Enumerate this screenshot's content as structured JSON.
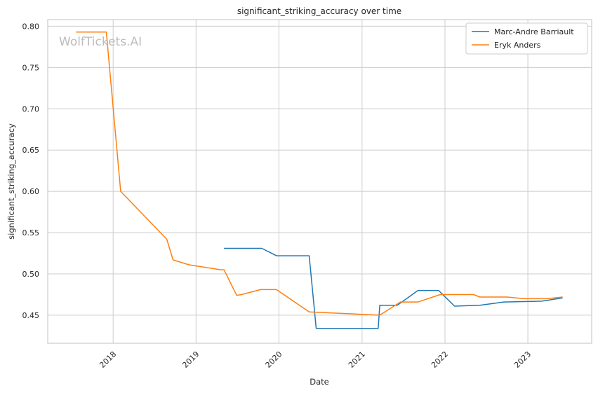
{
  "chart_data": {
    "type": "line",
    "title": "significant_striking_accuracy over time",
    "xlabel": "Date",
    "ylabel": "significant_striking_accuracy",
    "watermark": "WolfTickets.AI",
    "x_type": "date",
    "xlim": [
      "2017-03-19",
      "2023-10-09"
    ],
    "ylim": [
      0.416,
      0.808
    ],
    "x_ticks": [
      {
        "date": "2018-01-01",
        "label": "2018"
      },
      {
        "date": "2019-01-01",
        "label": "2019"
      },
      {
        "date": "2020-01-01",
        "label": "2020"
      },
      {
        "date": "2021-01-01",
        "label": "2021"
      },
      {
        "date": "2022-01-01",
        "label": "2022"
      },
      {
        "date": "2023-01-01",
        "label": "2023"
      }
    ],
    "y_ticks": [
      {
        "value": 0.45,
        "label": "0.45"
      },
      {
        "value": 0.5,
        "label": "0.50"
      },
      {
        "value": 0.55,
        "label": "0.55"
      },
      {
        "value": 0.6,
        "label": "0.60"
      },
      {
        "value": 0.65,
        "label": "0.65"
      },
      {
        "value": 0.7,
        "label": "0.70"
      },
      {
        "value": 0.75,
        "label": "0.75"
      },
      {
        "value": 0.8,
        "label": "0.80"
      }
    ],
    "grid": true,
    "legend_position": "top-right",
    "series": [
      {
        "name": "Marc-Andre Barriault",
        "color": "#1f77b4",
        "points": [
          [
            "2019-05-04",
            0.531
          ],
          [
            "2019-10-18",
            0.531
          ],
          [
            "2019-12-21",
            0.522
          ],
          [
            "2020-05-13",
            0.522
          ],
          [
            "2020-06-13",
            0.434
          ],
          [
            "2021-03-13",
            0.434
          ],
          [
            "2021-03-20",
            0.462
          ],
          [
            "2021-06-05",
            0.462
          ],
          [
            "2021-09-04",
            0.48
          ],
          [
            "2021-12-04",
            0.48
          ],
          [
            "2022-02-12",
            0.461
          ],
          [
            "2022-06-04",
            0.462
          ],
          [
            "2022-09-17",
            0.466
          ],
          [
            "2023-03-04",
            0.467
          ],
          [
            "2023-06-03",
            0.471
          ]
        ]
      },
      {
        "name": "Eryk Anders",
        "color": "#ff7f0e",
        "points": [
          [
            "2017-07-22",
            0.793
          ],
          [
            "2017-12-02",
            0.793
          ],
          [
            "2018-02-03",
            0.6
          ],
          [
            "2018-08-25",
            0.542
          ],
          [
            "2018-09-22",
            0.517
          ],
          [
            "2018-12-01",
            0.511
          ],
          [
            "2019-04-20",
            0.505
          ],
          [
            "2019-05-04",
            0.505
          ],
          [
            "2019-06-29",
            0.474
          ],
          [
            "2019-07-20",
            0.475
          ],
          [
            "2019-10-12",
            0.481
          ],
          [
            "2019-12-21",
            0.481
          ],
          [
            "2020-05-13",
            0.454
          ],
          [
            "2021-03-20",
            0.45
          ],
          [
            "2021-06-19",
            0.466
          ],
          [
            "2021-09-04",
            0.466
          ],
          [
            "2021-12-11",
            0.475
          ],
          [
            "2022-05-07",
            0.475
          ],
          [
            "2022-06-04",
            0.472
          ],
          [
            "2022-10-01",
            0.472
          ],
          [
            "2022-12-17",
            0.47
          ],
          [
            "2023-03-25",
            0.47
          ],
          [
            "2023-06-03",
            0.472
          ]
        ]
      }
    ]
  }
}
